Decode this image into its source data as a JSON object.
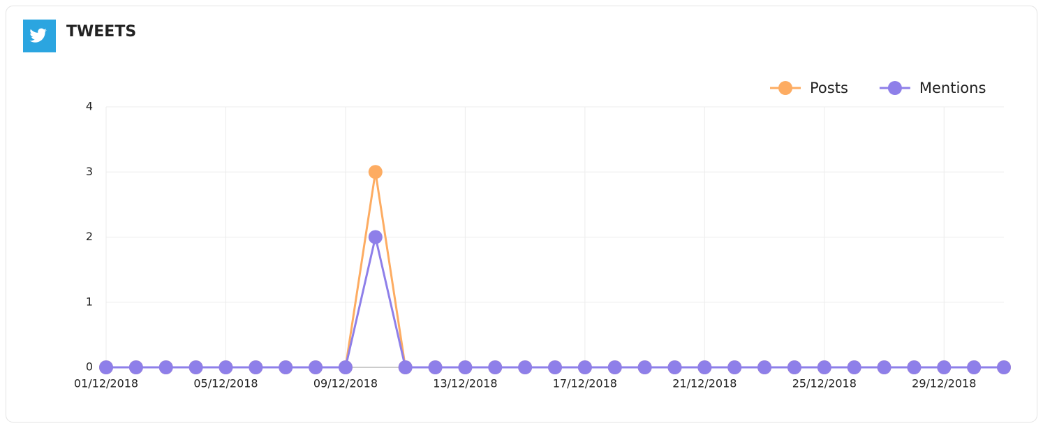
{
  "header": {
    "title": "TWEETS"
  },
  "chart_data": {
    "type": "line",
    "categories": [
      "01/12/2018",
      null,
      null,
      null,
      "05/12/2018",
      null,
      null,
      null,
      "09/12/2018",
      null,
      null,
      null,
      "13/12/2018",
      null,
      null,
      null,
      "17/12/2018",
      null,
      null,
      null,
      "21/12/2018",
      null,
      null,
      null,
      "25/12/2018",
      null,
      null,
      null,
      "29/12/2018",
      null,
      null
    ],
    "series": [
      {
        "name": "Posts",
        "color": "#fdac62",
        "values": [
          0,
          0,
          0,
          0,
          0,
          0,
          0,
          0,
          0,
          3,
          0,
          0,
          0,
          0,
          0,
          0,
          0,
          0,
          0,
          0,
          0,
          0,
          0,
          0,
          0,
          0,
          0,
          0,
          0,
          0,
          0
        ]
      },
      {
        "name": "Mentions",
        "color": "#8e7fe9",
        "values": [
          0,
          0,
          0,
          0,
          0,
          0,
          0,
          0,
          0,
          2,
          0,
          0,
          0,
          0,
          0,
          0,
          0,
          0,
          0,
          0,
          0,
          0,
          0,
          0,
          0,
          0,
          0,
          0,
          0,
          0,
          0
        ]
      }
    ],
    "ylim": [
      0,
      4
    ],
    "yticks": [
      0,
      1,
      2,
      3,
      4
    ],
    "grid": true,
    "legend": "top-right"
  }
}
